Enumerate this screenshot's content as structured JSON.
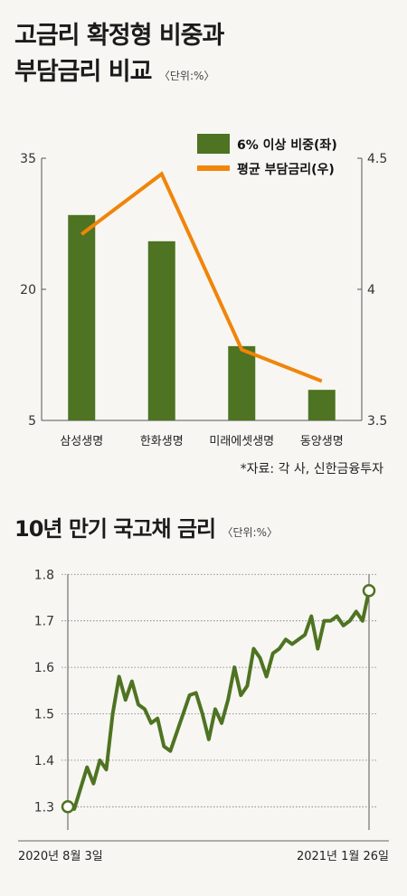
{
  "colors": {
    "bar": "#4e7322",
    "line": "#f0850a",
    "line2": "#4e7322",
    "axis": "#555555"
  },
  "chart_data": [
    {
      "type": "bar",
      "title_lines": [
        "고금리 확정형 비중과",
        "부담금리 비교"
      ],
      "unit": "〈단위:%〉",
      "categories": [
        "삼성생명",
        "한화생명",
        "미래에셋생명",
        "동양생명"
      ],
      "series": [
        {
          "name": "6% 이상 비중(좌)",
          "type": "bar",
          "axis": "left",
          "values": [
            28.5,
            25.5,
            13.5,
            8.5
          ]
        },
        {
          "name": "평균 부담금리(우)",
          "type": "line",
          "axis": "right",
          "values": [
            4.21,
            4.44,
            3.77,
            3.65
          ]
        }
      ],
      "ylim_left": [
        5,
        35
      ],
      "yticks_left": [
        "5",
        "20",
        "35"
      ],
      "ylim_right": [
        3.5,
        4.5
      ],
      "yticks_right": [
        "3.5",
        "4",
        "4.5"
      ],
      "legend_position": "top-right",
      "source": "*자료: 각 사, 신한금융투자"
    },
    {
      "type": "line",
      "title": "10년 만기 국고채 금리",
      "unit": "〈단위:%〉",
      "x_start_label": "2020년 8월 3일",
      "x_end_label": "2021년 1월 26일",
      "ylim": [
        1.25,
        1.82
      ],
      "yticks": [
        "1.3",
        "1.4",
        "1.5",
        "1.6",
        "1.7",
        "1.8"
      ],
      "grid": true,
      "values": [
        1.3,
        1.295,
        1.34,
        1.385,
        1.35,
        1.4,
        1.38,
        1.5,
        1.58,
        1.53,
        1.57,
        1.52,
        1.51,
        1.48,
        1.49,
        1.43,
        1.42,
        1.46,
        1.5,
        1.54,
        1.545,
        1.5,
        1.445,
        1.51,
        1.48,
        1.53,
        1.6,
        1.54,
        1.56,
        1.64,
        1.62,
        1.58,
        1.63,
        1.64,
        1.66,
        1.65,
        1.66,
        1.67,
        1.71,
        1.64,
        1.7,
        1.7,
        1.71,
        1.69,
        1.7,
        1.72,
        1.7,
        1.765
      ]
    }
  ]
}
